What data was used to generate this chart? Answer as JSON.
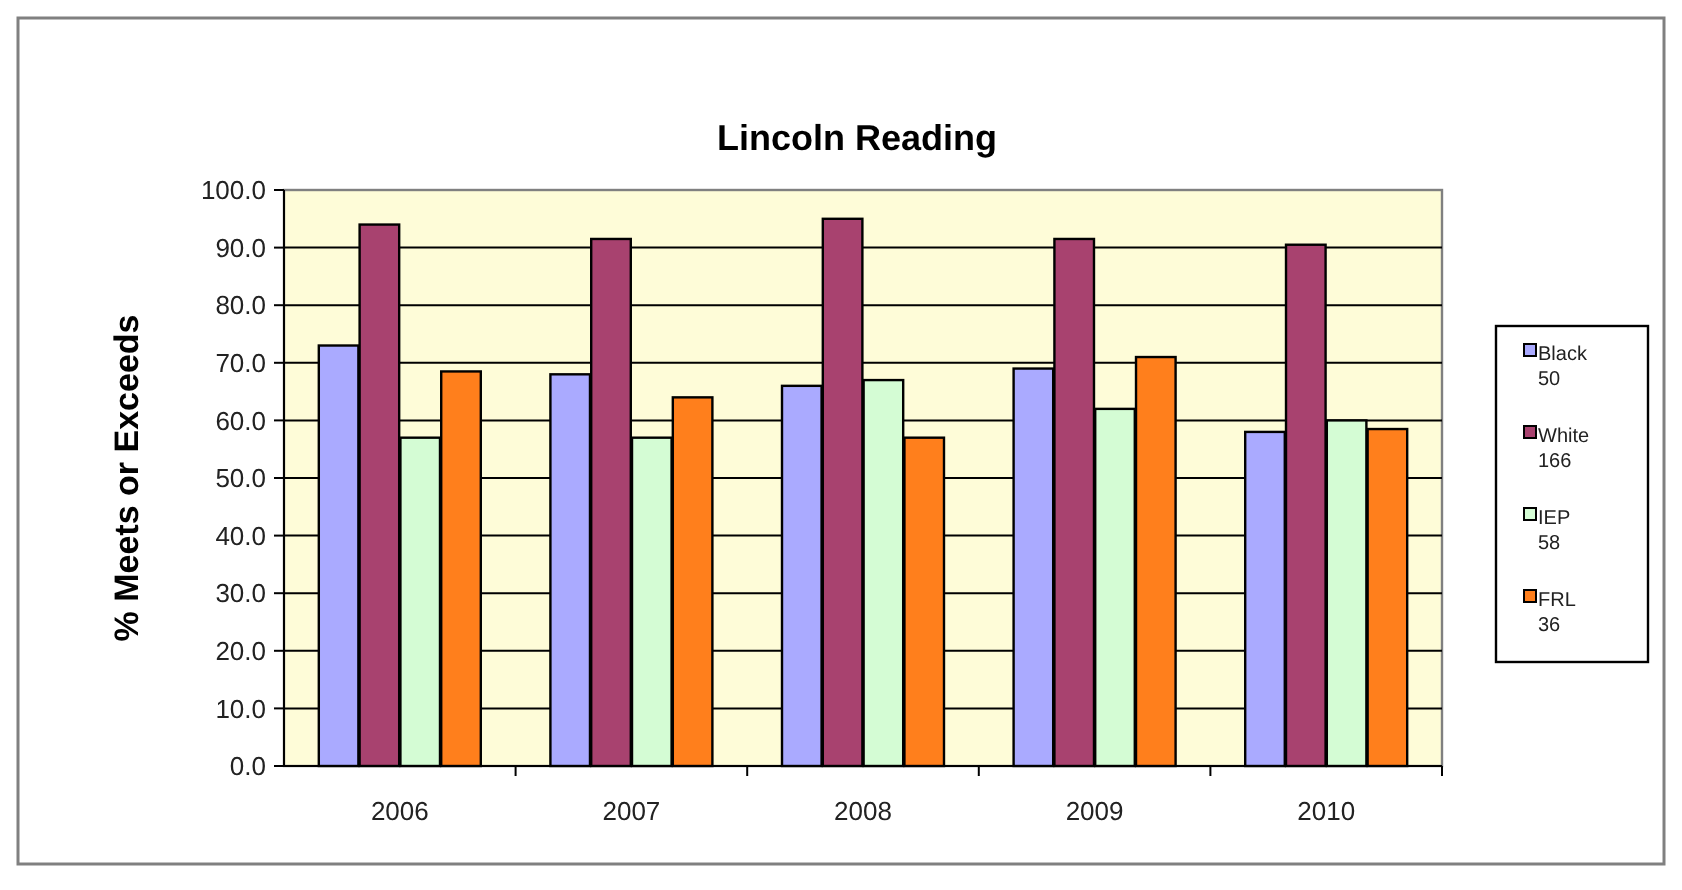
{
  "chart_data": {
    "type": "bar",
    "title": "Lincoln Reading",
    "ylabel": "% Meets or Exceeds",
    "categories": [
      "2006",
      "2007",
      "2008",
      "2009",
      "2010"
    ],
    "series": [
      {
        "name": "Black\n50",
        "color": "#aaaaff",
        "values": [
          73,
          68,
          66,
          69,
          58
        ]
      },
      {
        "name": "White\n166",
        "color": "#a8426f",
        "values": [
          94,
          91.5,
          95,
          91.5,
          90.5
        ]
      },
      {
        "name": "IEP\n58",
        "color": "#d4fcd4",
        "values": [
          57,
          57,
          67,
          62,
          60
        ]
      },
      {
        "name": "FRL\n36",
        "color": "#ff7f1c",
        "values": [
          68.5,
          64,
          57,
          71,
          58.5
        ]
      }
    ],
    "ylim": [
      0,
      100
    ],
    "yticks": [
      {
        "value": 0,
        "label": "0.0"
      },
      {
        "value": 10,
        "label": "10.0"
      },
      {
        "value": 20,
        "label": "20.0"
      },
      {
        "value": 30,
        "label": "30.0"
      },
      {
        "value": 40,
        "label": "40.0"
      },
      {
        "value": 50,
        "label": "50.0"
      },
      {
        "value": 60,
        "label": "60.0"
      },
      {
        "value": 70,
        "label": "70.0"
      },
      {
        "value": 80,
        "label": "80.0"
      },
      {
        "value": 90,
        "label": "90.0"
      },
      {
        "value": 100,
        "label": "100.0"
      }
    ],
    "grid": "y",
    "legend": "right"
  }
}
